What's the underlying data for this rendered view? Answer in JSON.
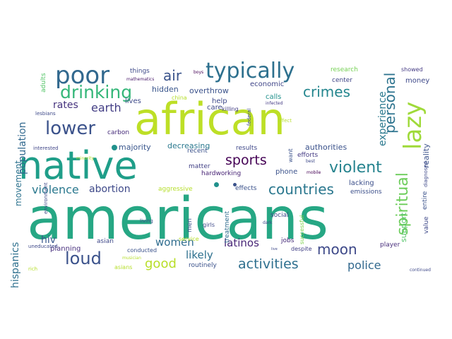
{
  "colors": {
    "background": "#ffffff",
    "palette": [
      "#440154",
      "#3b528b",
      "#21918c",
      "#5ec962",
      "#bddf26",
      "#2a788e",
      "#31688e",
      "#35b779"
    ]
  },
  "words": [
    {
      "text": "americans",
      "color": "#26a784"
    },
    {
      "text": "african",
      "color": "#bddf26"
    },
    {
      "text": "native",
      "color": "#1f9e89"
    },
    {
      "text": "poor",
      "color": "#31688e"
    },
    {
      "text": "typically",
      "color": "#2d708e"
    },
    {
      "text": "lazy",
      "color": "#9fda3a"
    },
    {
      "text": "drinking",
      "color": "#35b779"
    },
    {
      "text": "lower",
      "color": "#3b528b"
    },
    {
      "text": "crimes",
      "color": "#24868e"
    },
    {
      "text": "personal",
      "color": "#2c738e"
    },
    {
      "text": "spiritual",
      "color": "#6ccd5a"
    },
    {
      "text": "violent",
      "color": "#25838e"
    },
    {
      "text": "countries",
      "color": "#2a778e"
    },
    {
      "text": "sports",
      "color": "#440154"
    },
    {
      "text": "moon",
      "color": "#3e4989"
    },
    {
      "text": "loud",
      "color": "#3b528b"
    },
    {
      "text": "activities",
      "color": "#2e6f8e"
    },
    {
      "text": "air",
      "color": "#3a538b"
    },
    {
      "text": "earth",
      "color": "#433e85"
    },
    {
      "text": "rates",
      "color": "#46337e"
    },
    {
      "text": "experience",
      "color": "#2a788e"
    },
    {
      "text": "population",
      "color": "#31688e"
    },
    {
      "text": "violence",
      "color": "#2a788e"
    },
    {
      "text": "abortion",
      "color": "#3e4989"
    },
    {
      "text": "good",
      "color": "#b8de29"
    },
    {
      "text": "women",
      "color": "#2f6c8e"
    },
    {
      "text": "police",
      "color": "#31688e"
    },
    {
      "text": "hispanics",
      "color": "#2d708e"
    },
    {
      "text": "hiv",
      "color": "#38588c"
    },
    {
      "text": "latinos",
      "color": "#482677"
    },
    {
      "text": "likely",
      "color": "#2d708e"
    },
    {
      "text": "movement",
      "color": "#2c728e"
    },
    {
      "text": "majority",
      "color": "#39568c"
    },
    {
      "text": "decreasing",
      "color": "#2a788e"
    },
    {
      "text": "authorities",
      "color": "#3b528b"
    },
    {
      "text": "aggressive",
      "color": "#b5de2b"
    },
    {
      "text": "planning",
      "color": "#472f7d"
    },
    {
      "text": "asian",
      "color": "#3f4889"
    },
    {
      "text": "hidden",
      "color": "#39568c"
    },
    {
      "text": "overthrow",
      "color": "#3b528b"
    },
    {
      "text": "economic",
      "color": "#404688"
    },
    {
      "text": "calls",
      "color": "#21918c"
    },
    {
      "text": "care",
      "color": "#3e4989"
    },
    {
      "text": "lives",
      "color": "#3e4a89"
    },
    {
      "text": "carbon",
      "color": "#472d7b"
    },
    {
      "text": "matter",
      "color": "#424186"
    },
    {
      "text": "recent",
      "color": "#3b528b"
    },
    {
      "text": "results",
      "color": "#3f4889"
    },
    {
      "text": "phone",
      "color": "#3b528b"
    },
    {
      "text": "hardworking",
      "color": "#482475"
    },
    {
      "text": "effects",
      "color": "#3b528b"
    },
    {
      "text": "lacking",
      "color": "#3c4f8a"
    },
    {
      "text": "emissions",
      "color": "#3c4f8a"
    },
    {
      "text": "support",
      "color": "#54c568"
    },
    {
      "text": "reality",
      "color": "#3b528b"
    },
    {
      "text": "money",
      "color": "#3e4989"
    },
    {
      "text": "showed",
      "color": "#443a83"
    },
    {
      "text": "research",
      "color": "#75d054"
    },
    {
      "text": "center",
      "color": "#404688"
    },
    {
      "text": "help",
      "color": "#3e4989"
    },
    {
      "text": "killing",
      "color": "#433e85"
    },
    {
      "text": "efforts",
      "color": "#443a83"
    },
    {
      "text": "jobs",
      "color": "#472c7a"
    },
    {
      "text": "despite",
      "color": "#424186"
    },
    {
      "text": "successful",
      "color": "#7fd34e"
    },
    {
      "text": "social",
      "color": "#3e4989"
    },
    {
      "text": "treatment",
      "color": "#2f6c8e"
    },
    {
      "text": "men",
      "color": "#3b528b"
    },
    {
      "text": "things",
      "color": "#3e4a89"
    },
    {
      "text": "boys",
      "color": "#440154"
    },
    {
      "text": "mathematics",
      "color": "#48186a"
    },
    {
      "text": "china",
      "color": "#b5de2b"
    },
    {
      "text": "infected",
      "color": "#443b84"
    },
    {
      "text": "effect",
      "color": "#b5de2b"
    },
    {
      "text": "federal",
      "color": "#3e4a89"
    },
    {
      "text": "want",
      "color": "#3b528b"
    },
    {
      "text": "mobile",
      "color": "#440154"
    },
    {
      "text": "best",
      "color": "#3e4989"
    },
    {
      "text": "diagnosed",
      "color": "#3e4989"
    },
    {
      "text": "entire",
      "color": "#3b528b"
    },
    {
      "text": "value",
      "color": "#3e4989"
    },
    {
      "text": "player",
      "color": "#472d7b"
    },
    {
      "text": "continued",
      "color": "#3e4989"
    },
    {
      "text": "adults",
      "color": "#54c568"
    },
    {
      "text": "lesbians",
      "color": "#3e4989"
    },
    {
      "text": "interested",
      "color": "#404688"
    },
    {
      "text": "minority",
      "color": "#b5de2b"
    },
    {
      "text": "environment",
      "color": "#3e4989"
    },
    {
      "text": "uneducated",
      "color": "#3e4989"
    },
    {
      "text": "rich",
      "color": "#b5de2b"
    },
    {
      "text": "asians",
      "color": "#b5de2b"
    },
    {
      "text": "routinely",
      "color": "#3b528b"
    },
    {
      "text": "conducted",
      "color": "#3b528b"
    },
    {
      "text": "service",
      "color": "#b5de2b"
    },
    {
      "text": "musician",
      "color": "#b5de2b"
    },
    {
      "text": "living",
      "color": "#3b528b"
    },
    {
      "text": "girls",
      "color": "#3e4989"
    },
    {
      "text": "dark",
      "color": "#3e4989"
    },
    {
      "text": "live",
      "color": "#3e4989"
    }
  ],
  "dots": [
    {
      "color": "#21918c"
    },
    {
      "color": "#21918c"
    },
    {
      "color": "#3b528b"
    }
  ]
}
